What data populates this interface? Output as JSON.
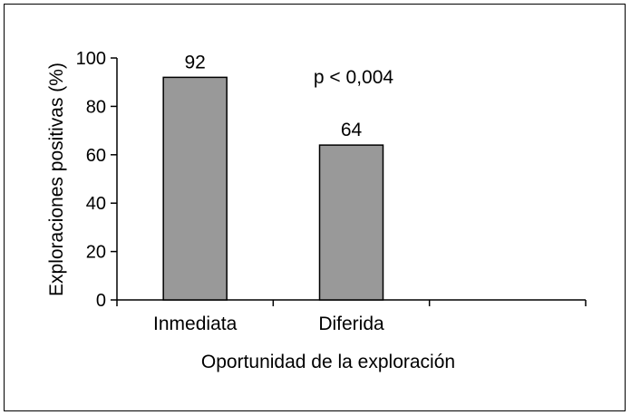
{
  "chart_data": {
    "type": "bar",
    "categories": [
      "Inmediata",
      "Diferida"
    ],
    "values": [
      92,
      64
    ],
    "data_labels": [
      "92",
      "64"
    ],
    "annotation": "p < 0,004",
    "xlabel": "Oportunidad de la exploración",
    "ylabel": "Exploraciones positivas (%)",
    "ylim": [
      0,
      100
    ],
    "yticks": [
      0,
      20,
      40,
      60,
      80,
      100
    ],
    "grid": false,
    "bar_color": "#999999",
    "bar_edge_color": "#000000"
  }
}
